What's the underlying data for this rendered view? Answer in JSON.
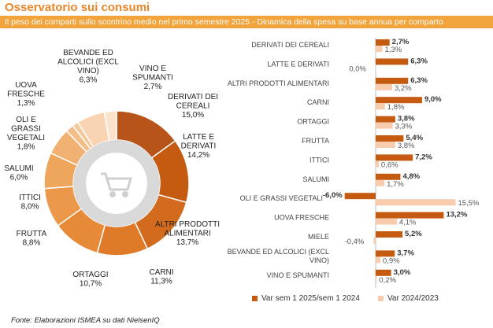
{
  "page": {
    "title": "Osservatorio sui consumi",
    "subtitle": "Il peso dei comparti sullo scontrino medio nel primo semestre 2025 - Dinamica della spesa su base annua per comparto",
    "footer": "Fonte: Elaborazioni ISMEA su dati NielsenIQ"
  },
  "colors": {
    "title": "#e8862a",
    "subtitle_bg": "#f1a43c",
    "series_dark": "#c55a11",
    "series_light": "#f8cbad",
    "donut_inner": "#d9d9d9",
    "donut_center": "#ffffff"
  },
  "chart_data": [
    {
      "type": "pie",
      "subtype": "donut",
      "slices": [
        {
          "label": "DERIVATI DEI CEREALI",
          "value": 15.0,
          "value_label": "15,0%",
          "color": "#b6541a"
        },
        {
          "label": "LATTE E DERIVATI",
          "value": 14.2,
          "value_label": "14,2%",
          "color": "#c55a11"
        },
        {
          "label": "ALTRI PRODOTTI ALIMENTARI",
          "value": 13.7,
          "value_label": "13,7%",
          "color": "#d36b1e"
        },
        {
          "label": "CARNI",
          "value": 11.3,
          "value_label": "11,3%",
          "color": "#df7a29"
        },
        {
          "label": "ORTAGGI",
          "value": 10.7,
          "value_label": "10,7%",
          "color": "#e68a38"
        },
        {
          "label": "FRUTTA",
          "value": 8.8,
          "value_label": "8,8%",
          "color": "#eb984a"
        },
        {
          "label": "ITTICI",
          "value": 8.0,
          "value_label": "8,0%",
          "color": "#eea55c"
        },
        {
          "label": "SALUMI",
          "value": 6.0,
          "value_label": "6,0%",
          "color": "#f1b172"
        },
        {
          "label": "OLI E GRASSI VEGETALI",
          "value": 1.8,
          "value_label": "1,8%",
          "color": "#f3bd88"
        },
        {
          "label": "UOVA FRESCHE",
          "value": 1.3,
          "value_label": "1,3%",
          "color": "#f5c89c"
        },
        {
          "label": "BEVANDE ED ALCOLICI (EXCL VINO)",
          "value": 6.3,
          "value_label": "6,3%",
          "color": "#f8d4b3"
        },
        {
          "label": "VINO E SPUMANTI",
          "value": 2.7,
          "value_label": "2,7%",
          "color": "#fbe2cc"
        }
      ]
    },
    {
      "type": "bar",
      "orientation": "horizontal",
      "categories": [
        "DERIVATI DEI CEREALI",
        "LATTE E DERIVATI",
        "ALTRI PRODOTTI ALIMENTARI",
        "CARNI",
        "ORTAGGI",
        "FRUTTA",
        "ITTICI",
        "SALUMI",
        "OLI E GRASSI VEGETALI",
        "UOVA FRESCHE",
        "MIELE",
        "BEVANDE ED ALCOLICI (EXCL VINO)",
        "VINO E SPUMANTI"
      ],
      "series": [
        {
          "name": "Var sem 1 2025/sem 1 2024",
          "values": [
            2.7,
            6.3,
            6.3,
            9.0,
            3.8,
            5.4,
            7.2,
            4.8,
            -6.0,
            13.2,
            5.2,
            3.7,
            3.0
          ],
          "labels": [
            "2,7%",
            "6,3%",
            "6,3%",
            "9,0%",
            "3,8%",
            "5,4%",
            "7,2%",
            "4,8%",
            "-6,0%",
            "13,2%",
            "5,2%",
            "3,7%",
            "3,0%"
          ]
        },
        {
          "name": "Var 2024/2023",
          "values": [
            1.3,
            0.0,
            3.2,
            1.8,
            3.3,
            3.8,
            0.6,
            1.7,
            15.5,
            4.1,
            -0.4,
            0.9,
            0.2
          ],
          "labels": [
            "1,3%",
            "0,0%",
            "3,2%",
            "1,8%",
            "3,3%",
            "3,8%",
            "0,6%",
            "1,7%",
            "15,5%",
            "4,1%",
            "-0,4%",
            "0,9%",
            "0,2%"
          ]
        }
      ],
      "xlim": [
        -7,
        16
      ],
      "legend": "bottom"
    }
  ]
}
